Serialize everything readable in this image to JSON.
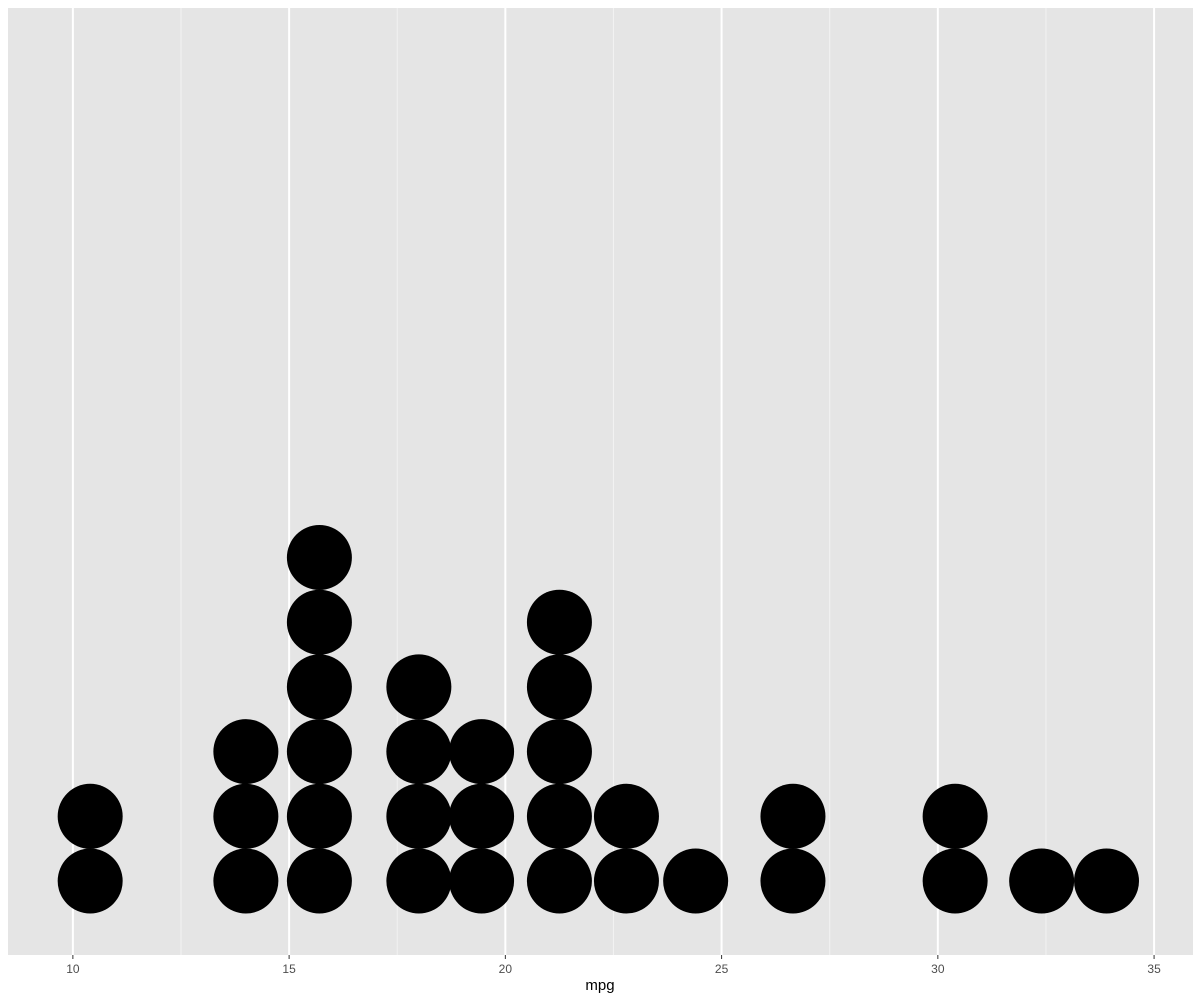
{
  "chart_data": {
    "type": "dotplot",
    "xlabel": "mpg",
    "ylabel": "",
    "xlim": [
      8.5,
      35.9
    ],
    "x_ticks": [
      10,
      15,
      20,
      25,
      30,
      35
    ],
    "x_tick_labels": [
      "10",
      "15",
      "20",
      "25",
      "30",
      "35"
    ],
    "x_minor_ticks": [
      12.5,
      17.5,
      22.5,
      27.5,
      32.5
    ],
    "grid": true,
    "legend": "none",
    "stacks": [
      {
        "x": 10.4,
        "count": 2
      },
      {
        "x": 14.0,
        "count": 3
      },
      {
        "x": 15.7,
        "count": 6
      },
      {
        "x": 18.0,
        "count": 4
      },
      {
        "x": 19.45,
        "count": 3
      },
      {
        "x": 21.25,
        "count": 5
      },
      {
        "x": 22.8,
        "count": 2
      },
      {
        "x": 24.4,
        "count": 1
      },
      {
        "x": 26.65,
        "count": 2
      },
      {
        "x": 30.4,
        "count": 2
      },
      {
        "x": 32.4,
        "count": 1
      },
      {
        "x": 33.9,
        "count": 1
      }
    ],
    "colors": {
      "panel_background": "#e5e5e5",
      "grid_major": "#ffffff",
      "grid_minor": "#f2f2f2",
      "dot_fill": "#000000",
      "tick_text": "#4d4d4d"
    }
  }
}
